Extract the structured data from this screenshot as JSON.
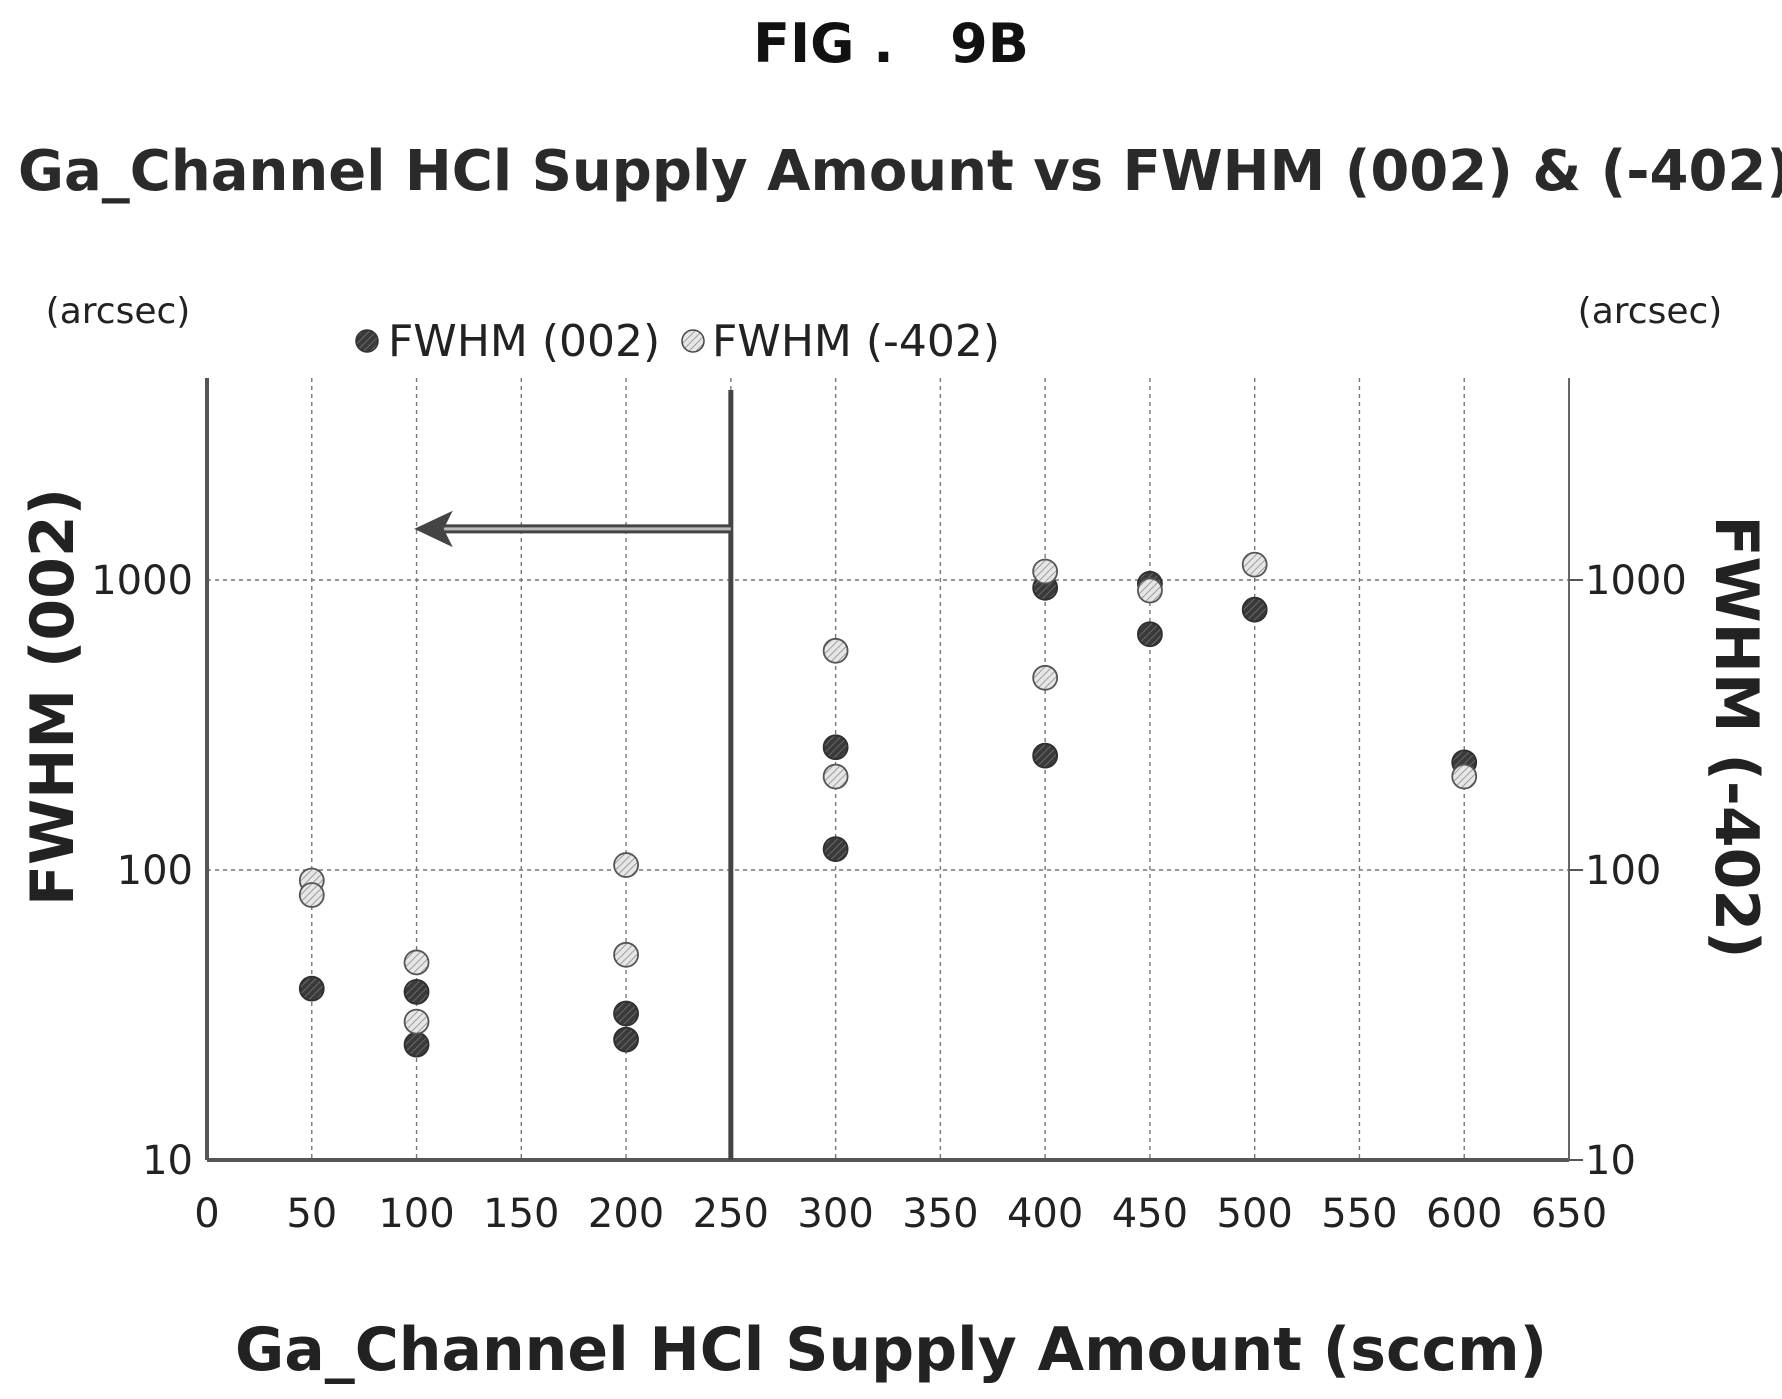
{
  "figure_label": "FIG .   9B",
  "chart_data": {
    "type": "scatter",
    "title": "Ga_Channel HCl Supply Amount vs FWHM (002) & (-402)",
    "xlabel": "Ga_Channel HCl Supply Amount (sccm)",
    "ylabel": "FWHM (002)",
    "ylabel_right": "FWHM (-402)",
    "y_unit_left": "(arcsec)",
    "y_unit_right": "(arcsec)",
    "xlim": [
      0,
      650
    ],
    "ylim": [
      10,
      5000
    ],
    "y_scale": "log",
    "x_ticks": [
      "0",
      "50",
      "100",
      "150",
      "200",
      "250",
      "300",
      "350",
      "400",
      "450",
      "500",
      "550",
      "600",
      "650"
    ],
    "y_ticks": [
      10,
      100,
      1000
    ],
    "y_tick_labels": [
      "10",
      "100",
      "1000"
    ],
    "grid": true,
    "legend_position": "top",
    "annotations": [
      {
        "type": "vertical-line",
        "x": 250
      },
      {
        "type": "arrow",
        "from_x": 250,
        "to_x": 100,
        "y": 1500,
        "direction": "left"
      }
    ],
    "series": [
      {
        "name": "FWHM (002)",
        "color": "#3c3c3c",
        "points": [
          [
            50,
            39
          ],
          [
            100,
            38
          ],
          [
            100,
            25
          ],
          [
            200,
            32
          ],
          [
            200,
            26
          ],
          [
            300,
            265
          ],
          [
            300,
            118
          ],
          [
            400,
            940
          ],
          [
            400,
            248
          ],
          [
            450,
            970
          ],
          [
            450,
            650
          ],
          [
            500,
            790
          ],
          [
            600,
            235
          ]
        ]
      },
      {
        "name": "FWHM (-402)",
        "color": "#bdbdbd",
        "points": [
          [
            50,
            92
          ],
          [
            50,
            82
          ],
          [
            100,
            48
          ],
          [
            100,
            30
          ],
          [
            200,
            104
          ],
          [
            200,
            51
          ],
          [
            300,
            570
          ],
          [
            300,
            210
          ],
          [
            400,
            1070
          ],
          [
            400,
            460
          ],
          [
            450,
            920
          ],
          [
            500,
            1130
          ],
          [
            600,
            210
          ]
        ]
      }
    ]
  }
}
